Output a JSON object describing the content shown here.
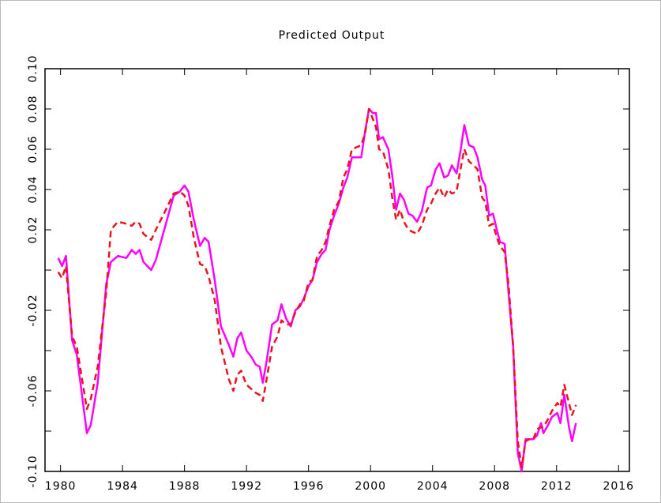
{
  "chart_data": {
    "type": "line",
    "title": "Predicted Output",
    "x": [
      1979.85,
      1980.1,
      1980.35,
      1980.75,
      1981.05,
      1981.7,
      1981.95,
      1982.4,
      1982.95,
      1983.25,
      1983.7,
      1984.25,
      1984.6,
      1984.85,
      1985.1,
      1985.35,
      1985.85,
      1986.15,
      1986.8,
      1987.3,
      1987.7,
      1988.0,
      1988.25,
      1988.6,
      1989.0,
      1989.3,
      1989.55,
      1989.95,
      1990.35,
      1990.85,
      1991.15,
      1991.4,
      1991.65,
      1992.0,
      1992.3,
      1992.6,
      1992.85,
      1993.05,
      1993.3,
      1993.65,
      1994.0,
      1994.25,
      1994.55,
      1994.85,
      1995.15,
      1995.45,
      1995.7,
      1996.0,
      1996.25,
      1996.55,
      1996.85,
      1997.1,
      1997.35,
      1997.65,
      1997.95,
      1998.25,
      1998.5,
      1998.8,
      1999.1,
      1999.4,
      1999.65,
      1999.9,
      2000.15,
      2000.35,
      2000.55,
      2000.8,
      2001.15,
      2001.4,
      2001.65,
      2001.9,
      2002.15,
      2002.45,
      2002.7,
      2003.0,
      2003.3,
      2003.65,
      2003.9,
      2004.2,
      2004.45,
      2004.75,
      2005.0,
      2005.25,
      2005.55,
      2005.8,
      2006.05,
      2006.35,
      2006.65,
      2006.9,
      2007.2,
      2007.4,
      2007.65,
      2007.9,
      2008.15,
      2008.35,
      2008.65,
      2008.9,
      2009.2,
      2009.5,
      2009.75,
      2010.0,
      2010.25,
      2010.5,
      2010.75,
      2011.0,
      2011.15,
      2011.45,
      2011.7,
      2012.05,
      2012.25,
      2012.5,
      2012.8,
      2013.0,
      2013.25
    ],
    "series": [
      {
        "color": "#ff00ff",
        "dashed": false,
        "values": [
          0.006,
          0.002,
          0.007,
          -0.035,
          -0.042,
          -0.081,
          -0.077,
          -0.056,
          -0.007,
          0.004,
          0.007,
          0.006,
          0.01,
          0.008,
          0.01,
          0.004,
          0,
          0.005,
          0.023,
          0.037,
          0.039,
          0.042,
          0.039,
          0.025,
          0.012,
          0.016,
          0.014,
          -0.005,
          -0.028,
          -0.037,
          -0.043,
          -0.034,
          -0.031,
          -0.04,
          -0.043,
          -0.047,
          -0.048,
          -0.056,
          -0.045,
          -0.027,
          -0.025,
          -0.017,
          -0.024,
          -0.028,
          -0.02,
          -0.018,
          -0.014,
          -0.008,
          -0.005,
          0.004,
          0.008,
          0.01,
          0.02,
          0.027,
          0.033,
          0.041,
          0.046,
          0.056,
          0.056,
          0.056,
          0.069,
          0.08,
          0.078,
          0.078,
          0.065,
          0.066,
          0.06,
          0.047,
          0.03,
          0.038,
          0.035,
          0.028,
          0.027,
          0.024,
          0.029,
          0.041,
          0.042,
          0.05,
          0.053,
          0.046,
          0.047,
          0.052,
          0.048,
          0.059,
          0.072,
          0.062,
          0.061,
          0.056,
          0.045,
          0.042,
          0.027,
          0.028,
          0.02,
          0.014,
          0.013,
          -0.011,
          -0.038,
          -0.091,
          -0.1,
          -0.084,
          -0.084,
          -0.084,
          -0.082,
          -0.076,
          -0.081,
          -0.077,
          -0.073,
          -0.071,
          -0.076,
          -0.062,
          -0.078,
          -0.085,
          -0.076
        ]
      },
      {
        "color": "#e8141e",
        "dashed": true,
        "values": [
          -0.001,
          -0.004,
          0.002,
          -0.033,
          -0.038,
          -0.069,
          -0.064,
          -0.048,
          -0.011,
          0.02,
          0.024,
          0.023,
          0.022,
          0.024,
          0.023,
          0.018,
          0.015,
          0.02,
          0.03,
          0.038,
          0.039,
          0.037,
          0.032,
          0.016,
          0.003,
          0.002,
          -0.003,
          -0.015,
          -0.038,
          -0.054,
          -0.06,
          -0.052,
          -0.05,
          -0.057,
          -0.059,
          -0.061,
          -0.062,
          -0.065,
          -0.054,
          -0.038,
          -0.033,
          -0.025,
          -0.027,
          -0.027,
          -0.021,
          -0.017,
          -0.015,
          -0.006,
          -0.005,
          0.007,
          0.01,
          0.014,
          0.022,
          0.03,
          0.034,
          0.046,
          0.05,
          0.06,
          0.061,
          0.062,
          0.068,
          0.08,
          0.075,
          0.071,
          0.06,
          0.059,
          0.05,
          0.036,
          0.025,
          0.03,
          0.024,
          0.02,
          0.019,
          0.018,
          0.022,
          0.03,
          0.033,
          0.038,
          0.041,
          0.036,
          0.04,
          0.038,
          0.039,
          0.05,
          0.06,
          0.054,
          0.052,
          0.05,
          0.036,
          0.034,
          0.022,
          0.023,
          0.016,
          0.012,
          0.009,
          -0.007,
          -0.038,
          -0.085,
          -0.098,
          -0.085,
          -0.084,
          -0.084,
          -0.079,
          -0.078,
          -0.078,
          -0.074,
          -0.07,
          -0.066,
          -0.068,
          -0.057,
          -0.066,
          -0.072,
          -0.067
        ]
      }
    ],
    "xlim": [
      1979,
      2016.7
    ],
    "xticks": [
      1980,
      1984,
      1988,
      1992,
      1996,
      2000,
      2004,
      2008,
      2012,
      2016
    ],
    "ylim": [
      -0.1,
      0.1
    ],
    "yticks": [
      {
        "value": -0.1,
        "label": "-0.10"
      },
      {
        "value": -0.08,
        "label": null
      },
      {
        "value": -0.06,
        "label": "-0.06"
      },
      {
        "value": -0.04,
        "label": null
      },
      {
        "value": -0.02,
        "label": "-0.02"
      },
      {
        "value": 0,
        "label": null
      },
      {
        "value": 0.02,
        "label": "0.02"
      },
      {
        "value": 0.04,
        "label": "0.04"
      },
      {
        "value": 0.06,
        "label": "0.06"
      },
      {
        "value": 0.08,
        "label": "0.08"
      },
      {
        "value": 0.1,
        "label": "0.10"
      }
    ],
    "grid": false
  }
}
